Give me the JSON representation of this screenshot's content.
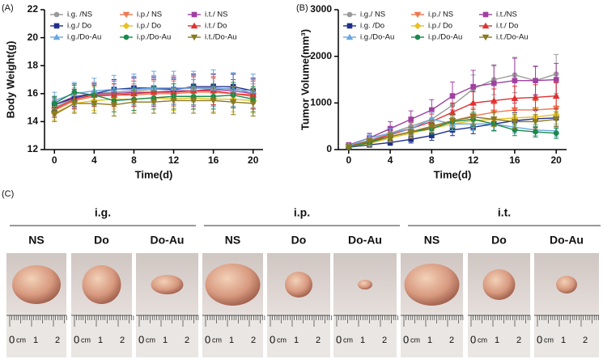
{
  "chart_data": [
    {
      "type": "line",
      "panel": "(A)",
      "x_label": "Time(d)",
      "y_label": "Body Weight(g)",
      "x": [
        0,
        2,
        4,
        6,
        8,
        10,
        12,
        14,
        16,
        18,
        20
      ],
      "xlim": [
        -1,
        21
      ],
      "xticks": [
        0,
        4,
        8,
        12,
        16,
        20
      ],
      "ylim": [
        12,
        22
      ],
      "yticks": [
        12,
        14,
        16,
        18,
        20,
        22
      ],
      "series": [
        {
          "name": "i.g. /NS",
          "color": "#9a9a9a",
          "marker": "circle",
          "values": [
            15.0,
            15.7,
            16.0,
            16.1,
            16.2,
            16.3,
            16.3,
            16.4,
            16.3,
            16.4,
            16.0
          ],
          "errors": [
            0.6,
            0.7,
            0.8,
            0.9,
            0.9,
            1.0,
            1.0,
            1.0,
            1.1,
            1.1,
            1.0
          ]
        },
        {
          "name": "i.p./ NS",
          "color": "#f07850",
          "marker": "tri-down",
          "values": [
            14.8,
            15.5,
            15.8,
            15.9,
            15.9,
            16.0,
            16.0,
            16.1,
            16.1,
            16.0,
            15.8
          ],
          "errors": [
            0.5,
            0.6,
            0.7,
            0.8,
            0.8,
            0.9,
            0.9,
            0.9,
            1.0,
            1.0,
            0.9
          ]
        },
        {
          "name": "i.t./ NS",
          "color": "#a040a0",
          "marker": "square",
          "values": [
            15.2,
            15.8,
            16.0,
            16.0,
            16.1,
            16.1,
            16.2,
            16.2,
            16.3,
            16.2,
            16.0
          ],
          "errors": [
            0.6,
            0.8,
            0.8,
            0.9,
            1.0,
            1.0,
            1.0,
            1.1,
            1.1,
            1.2,
            1.1
          ]
        },
        {
          "name": "i.g./ Do",
          "color": "#1f2f8f",
          "marker": "square",
          "values": [
            15.2,
            15.7,
            16.0,
            16.3,
            16.4,
            16.4,
            16.3,
            16.5,
            16.5,
            16.5,
            16.2
          ],
          "errors": [
            0.5,
            0.6,
            0.7,
            0.7,
            0.8,
            0.8,
            0.8,
            0.9,
            0.9,
            0.9,
            0.9
          ]
        },
        {
          "name": "i.p./ Do",
          "color": "#e8c020",
          "marker": "diamond",
          "values": [
            14.6,
            15.3,
            15.5,
            15.6,
            15.6,
            15.7,
            15.6,
            15.7,
            15.6,
            15.6,
            15.5
          ],
          "errors": [
            0.5,
            0.6,
            0.7,
            0.7,
            0.8,
            0.8,
            0.8,
            0.8,
            0.9,
            0.9,
            0.9
          ]
        },
        {
          "name": "i.t./ Do",
          "color": "#e03030",
          "marker": "tri-up",
          "values": [
            14.9,
            15.6,
            15.9,
            15.9,
            16.0,
            16.1,
            16.1,
            16.2,
            16.2,
            16.0,
            15.9
          ],
          "errors": [
            0.6,
            0.7,
            0.8,
            0.8,
            0.9,
            0.9,
            0.9,
            1.0,
            1.0,
            1.0,
            1.0
          ]
        },
        {
          "name": "i.g./Do-Au",
          "color": "#6aa8e0",
          "marker": "tri-up",
          "values": [
            15.5,
            16.0,
            16.2,
            16.3,
            16.3,
            16.4,
            16.4,
            16.4,
            16.4,
            16.3,
            16.2
          ],
          "errors": [
            0.6,
            0.8,
            0.9,
            1.0,
            1.1,
            1.2,
            1.2,
            1.2,
            1.3,
            1.2,
            1.2
          ]
        },
        {
          "name": "i.p./Do-Au",
          "color": "#1a8a4a",
          "marker": "circle",
          "values": [
            15.3,
            16.1,
            15.9,
            15.5,
            15.6,
            15.7,
            15.8,
            15.8,
            15.8,
            15.9,
            15.6
          ],
          "errors": [
            0.5,
            0.6,
            0.7,
            0.8,
            0.8,
            0.8,
            0.9,
            0.9,
            0.9,
            0.9,
            0.9
          ]
        },
        {
          "name": "i.t./Do-Au",
          "color": "#8a7a20",
          "marker": "tri-down",
          "values": [
            14.5,
            15.3,
            15.3,
            15.2,
            15.4,
            15.4,
            15.5,
            15.5,
            15.5,
            15.4,
            15.3
          ],
          "errors": [
            0.5,
            0.7,
            0.7,
            0.8,
            0.8,
            0.8,
            0.9,
            0.9,
            0.9,
            0.9,
            0.9
          ]
        }
      ]
    },
    {
      "type": "line",
      "panel": "(B)",
      "x_label": "Time(d)",
      "y_label": "Tumor Volume(mm³)",
      "x": [
        0,
        2,
        4,
        6,
        8,
        10,
        12,
        14,
        16,
        18,
        20
      ],
      "xlim": [
        -1,
        21
      ],
      "xticks": [
        0,
        4,
        8,
        12,
        16,
        20
      ],
      "ylim": [
        0,
        3000
      ],
      "yticks": [
        0,
        1000,
        2000,
        3000
      ],
      "series": [
        {
          "name": "i.g./ NS",
          "color": "#9a9a9a",
          "marker": "circle",
          "values": [
            80,
            200,
            350,
            500,
            650,
            950,
            1300,
            1500,
            1600,
            1480,
            1620
          ],
          "errors": [
            40,
            80,
            120,
            150,
            200,
            250,
            300,
            320,
            380,
            320,
            420
          ]
        },
        {
          "name": "i.p./ NS",
          "color": "#f07850",
          "marker": "tri-down",
          "values": [
            60,
            150,
            280,
            380,
            480,
            620,
            720,
            800,
            850,
            850,
            880
          ],
          "errors": [
            30,
            60,
            90,
            110,
            130,
            150,
            170,
            180,
            200,
            200,
            220
          ]
        },
        {
          "name": "i.t./NS",
          "color": "#a040a0",
          "marker": "square",
          "values": [
            100,
            250,
            450,
            650,
            850,
            1150,
            1350,
            1420,
            1480,
            1480,
            1500
          ],
          "errors": [
            50,
            100,
            150,
            180,
            220,
            300,
            350,
            380,
            480,
            300,
            350
          ]
        },
        {
          "name": "i.g. /Do",
          "color": "#1f2f8f",
          "marker": "square",
          "values": [
            50,
            100,
            150,
            220,
            300,
            420,
            480,
            550,
            620,
            660,
            680
          ],
          "errors": [
            20,
            40,
            60,
            80,
            100,
            120,
            140,
            150,
            170,
            180,
            190
          ]
        },
        {
          "name": "i.p./ Do",
          "color": "#e8c020",
          "marker": "diamond",
          "values": [
            60,
            130,
            250,
            350,
            450,
            550,
            620,
            650,
            680,
            700,
            750
          ],
          "errors": [
            30,
            50,
            80,
            100,
            120,
            140,
            150,
            160,
            170,
            180,
            190
          ]
        },
        {
          "name": "i.t./ Do",
          "color": "#e03030",
          "marker": "tri-up",
          "values": [
            70,
            180,
            320,
            450,
            600,
            800,
            1000,
            1050,
            1100,
            1120,
            1150
          ],
          "errors": [
            30,
            70,
            100,
            130,
            160,
            200,
            240,
            250,
            260,
            270,
            280
          ]
        },
        {
          "name": "i.g./Do-Au",
          "color": "#6aa8e0",
          "marker": "tri-up",
          "values": [
            80,
            250,
            350,
            450,
            650,
            550,
            550,
            550,
            480,
            420,
            400
          ],
          "errors": [
            40,
            80,
            100,
            120,
            160,
            140,
            140,
            140,
            130,
            120,
            120
          ]
        },
        {
          "name": "i.p./Do-Au",
          "color": "#1a8a4a",
          "marker": "circle",
          "values": [
            50,
            150,
            280,
            380,
            450,
            600,
            650,
            550,
            420,
            380,
            350
          ],
          "errors": [
            20,
            50,
            80,
            100,
            120,
            140,
            150,
            140,
            120,
            110,
            110
          ]
        },
        {
          "name": "i.t./Do-Au",
          "color": "#8a7a20",
          "marker": "tri-down",
          "values": [
            60,
            180,
            280,
            380,
            500,
            620,
            700,
            650,
            600,
            600,
            650
          ],
          "errors": [
            30,
            60,
            80,
            100,
            130,
            150,
            160,
            150,
            150,
            150,
            160
          ]
        }
      ]
    }
  ],
  "photo_panel": {
    "label": "(C)",
    "groups": [
      {
        "name": "i.g.",
        "samples": [
          "NS",
          "Do",
          "Do-Au"
        ]
      },
      {
        "name": "i.p.",
        "samples": [
          "NS",
          "Do",
          "Do-Au"
        ]
      },
      {
        "name": "i.t.",
        "samples": [
          "NS",
          "Do",
          "Do-Au"
        ]
      }
    ],
    "ruler_labels": [
      "0",
      "cm",
      "1",
      "2"
    ]
  }
}
